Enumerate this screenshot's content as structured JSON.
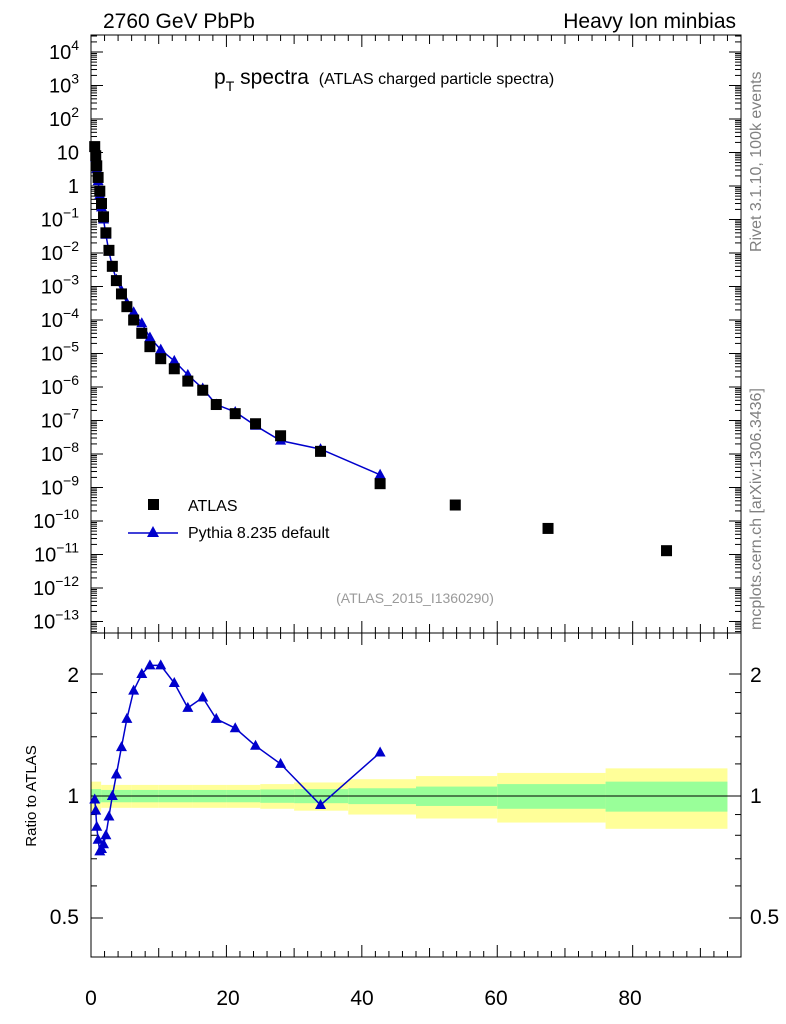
{
  "header": {
    "left": "2760 GeV PbPb",
    "right": "Heavy Ion minbias"
  },
  "side_labels": {
    "rivet": "Rivet 3.1.10,  100k events",
    "mcplots": "mcplots.cern.ch [arXiv:1306.3436]"
  },
  "main_panel": {
    "title_main": "p",
    "title_sub": "T",
    "title_word": " spectra",
    "title_paren": "(ATLAS charged particle spectra)",
    "analysis_id": "(ATLAS_2015_I1360290)",
    "legend": [
      {
        "label": "ATLAS",
        "marker": "square",
        "color": "#000000"
      },
      {
        "label": "Pythia 8.235 default",
        "marker": "triangle",
        "color": "#0000cc"
      }
    ],
    "y_tick_labels": [
      {
        "base": "10",
        "exp": "4",
        "v": 4
      },
      {
        "base": "10",
        "exp": "3",
        "v": 3
      },
      {
        "base": "10",
        "exp": "2",
        "v": 2
      },
      {
        "base": "10",
        "exp": "",
        "v": 1
      },
      {
        "base": "1",
        "exp": "",
        "v": 0
      },
      {
        "base": "10",
        "exp": "−1",
        "v": -1
      },
      {
        "base": "10",
        "exp": "−2",
        "v": -2
      },
      {
        "base": "10",
        "exp": "−3",
        "v": -3
      },
      {
        "base": "10",
        "exp": "−4",
        "v": -4
      },
      {
        "base": "10",
        "exp": "−5",
        "v": -5
      },
      {
        "base": "10",
        "exp": "−6",
        "v": -6
      },
      {
        "base": "10",
        "exp": "−7",
        "v": -7
      },
      {
        "base": "10",
        "exp": "−8",
        "v": -8
      },
      {
        "base": "10",
        "exp": "−9",
        "v": -9
      },
      {
        "base": "10",
        "exp": "−10",
        "v": -10
      },
      {
        "base": "10",
        "exp": "−11",
        "v": -11
      },
      {
        "base": "10",
        "exp": "−12",
        "v": -12
      },
      {
        "base": "10",
        "exp": "−13",
        "v": -13
      }
    ]
  },
  "ratio_panel": {
    "ylabel": "Ratio to ATLAS",
    "y_tick_labels": [
      "2",
      "1",
      "0.5"
    ],
    "x_tick_labels": [
      "0",
      "20",
      "40",
      "60",
      "80"
    ]
  },
  "colors": {
    "data": "#000000",
    "mc": "#0000cc",
    "band_inner": "#99ff99",
    "band_outer": "#ffff99"
  },
  "chart_data": [
    {
      "type": "scatter",
      "title": "pT spectra (ATLAS charged particle spectra)",
      "xlabel": "",
      "ylabel": "",
      "yscale": "log",
      "xlim": [
        0,
        96
      ],
      "ylim": [
        1e-13,
        30000
      ],
      "series": [
        {
          "name": "ATLAS",
          "marker": "square",
          "x": [
            0.55,
            0.7,
            0.85,
            1.05,
            1.3,
            1.55,
            1.85,
            2.2,
            2.65,
            3.15,
            3.75,
            4.5,
            5.3,
            6.3,
            7.5,
            8.7,
            10.3,
            12.3,
            14.3,
            16.5,
            18.5,
            21.3,
            24.3,
            28.0,
            33.9,
            42.7,
            53.8,
            67.5,
            85.0
          ],
          "y": [
            15,
            8,
            4,
            1.8,
            0.7,
            0.3,
            0.12,
            0.04,
            0.012,
            0.004,
            0.0015,
            0.0006,
            0.00025,
            0.0001,
            4e-05,
            1.6e-05,
            7e-06,
            3.5e-06,
            1.5e-06,
            8e-07,
            3e-07,
            1.6e-07,
            8e-08,
            3.5e-08,
            1.2e-08,
            1.3e-09,
            3e-10,
            6e-11,
            1.3e-11
          ]
        },
        {
          "name": "Pythia 8.235 default",
          "marker": "triangle",
          "x": [
            0.55,
            0.7,
            0.85,
            1.05,
            1.3,
            1.55,
            1.85,
            2.2,
            2.65,
            3.15,
            3.75,
            4.5,
            5.3,
            6.3,
            7.5,
            8.7,
            10.3,
            12.3,
            14.3,
            16.5,
            18.5,
            21.3,
            24.3,
            28.0,
            33.9,
            42.7
          ],
          "y": [
            14,
            7,
            3.2,
            1.4,
            0.54,
            0.23,
            0.1,
            0.035,
            0.011,
            0.004,
            0.0016,
            0.00075,
            0.00032,
            0.00017,
            8e-05,
            3e-05,
            1.3e-05,
            6e-06,
            2.3e-06,
            9e-07,
            3e-07,
            1.8e-07,
            7e-08,
            2.5e-08,
            1.4e-08,
            2.4e-09
          ]
        }
      ]
    },
    {
      "type": "line",
      "ylabel": "Ratio to ATLAS",
      "yscale": "log",
      "xlim": [
        0,
        96
      ],
      "ylim": [
        0.4,
        2.3
      ],
      "reference": 1,
      "band_edges": [
        0,
        1.5,
        3,
        6,
        10,
        15,
        20,
        25,
        30,
        38,
        48,
        60,
        76,
        94
      ],
      "band_inner": [
        0.04,
        0.035,
        0.035,
        0.035,
        0.035,
        0.035,
        0.035,
        0.038,
        0.04,
        0.045,
        0.055,
        0.07,
        0.085
      ],
      "band_outer": [
        0.085,
        0.065,
        0.065,
        0.065,
        0.065,
        0.065,
        0.065,
        0.07,
        0.08,
        0.1,
        0.12,
        0.14,
        0.17
      ],
      "series": [
        {
          "name": "Pythia 8.235 default",
          "marker": "triangle",
          "x": [
            0.55,
            0.7,
            0.85,
            1.05,
            1.3,
            1.55,
            1.85,
            2.2,
            2.65,
            3.15,
            3.75,
            4.5,
            5.3,
            6.3,
            7.5,
            8.7,
            10.3,
            12.3,
            14.3,
            16.5,
            18.5,
            21.3,
            24.3,
            28.0,
            33.9,
            42.7
          ],
          "y": [
            0.98,
            0.92,
            0.84,
            0.78,
            0.73,
            0.74,
            0.76,
            0.8,
            0.89,
            1.0,
            1.13,
            1.32,
            1.55,
            1.82,
            2.0,
            2.1,
            2.1,
            1.9,
            1.65,
            1.75,
            1.55,
            1.47,
            1.33,
            1.2,
            0.95,
            1.28
          ]
        }
      ]
    }
  ]
}
